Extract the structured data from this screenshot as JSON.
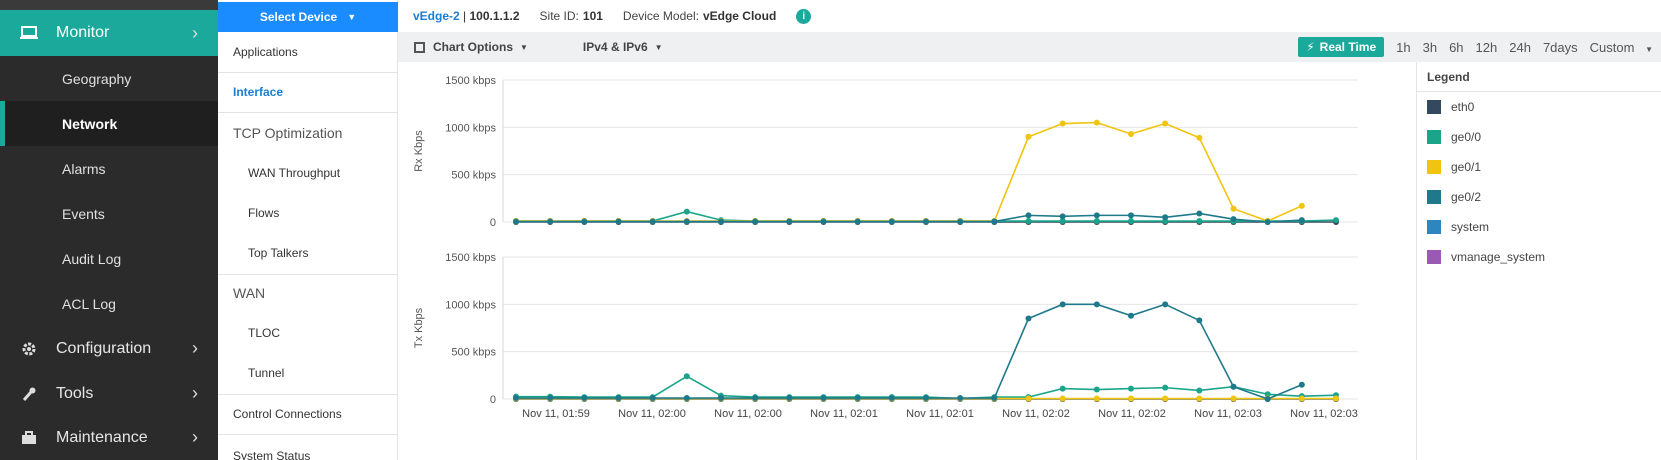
{
  "nav": {
    "monitor": "Monitor",
    "sub": [
      "Geography",
      "Network",
      "Alarms",
      "Events",
      "Audit Log",
      "ACL Log"
    ],
    "groups": [
      "Configuration",
      "Tools",
      "Maintenance"
    ]
  },
  "col2": {
    "select_device": "Select Device",
    "items": [
      "Applications",
      "Interface",
      "TCP Optimization",
      "WAN Throughput",
      "Flows",
      "Top Talkers",
      "WAN",
      "TLOC",
      "Tunnel",
      "Control Connections",
      "System Status"
    ]
  },
  "info": {
    "device_name": "vEdge-2",
    "device_ip": "100.1.1.2",
    "site_label": "Site ID:",
    "site_id": "101",
    "model_label": "Device Model:",
    "model": "vEdge Cloud"
  },
  "toolbar": {
    "chart_options": "Chart Options",
    "ip": "IPv4 & IPv6",
    "real_time": "Real Time",
    "ranges": [
      "1h",
      "3h",
      "6h",
      "12h",
      "24h",
      "7days"
    ],
    "custom": "Custom"
  },
  "legend": {
    "title": "Legend",
    "items": [
      {
        "name": "eth0",
        "color": "#34495e"
      },
      {
        "name": "ge0/0",
        "color": "#1aa58a"
      },
      {
        "name": "ge0/1",
        "color": "#f1c40f"
      },
      {
        "name": "ge0/2",
        "color": "#1e7a8a"
      },
      {
        "name": "system",
        "color": "#2e86c1"
      },
      {
        "name": "vmanage_system",
        "color": "#9b59b6"
      }
    ]
  },
  "chart_data": [
    {
      "type": "line",
      "ylabel": "Rx Kbps",
      "yticks": [
        "1500 kbps",
        "1000 kbps",
        "500 kbps",
        "0"
      ],
      "ylim": [
        0,
        1500
      ],
      "series": [
        {
          "name": "eth0",
          "color": "#34495e",
          "values": [
            0,
            0,
            0,
            0,
            0,
            0,
            0,
            0,
            0,
            0,
            0,
            0,
            0,
            0,
            0,
            0,
            0,
            0,
            0,
            0,
            0,
            0,
            0,
            0,
            0
          ]
        },
        {
          "name": "ge0/0",
          "color": "#1aa58a",
          "values": [
            10,
            10,
            10,
            10,
            10,
            110,
            20,
            10,
            10,
            10,
            10,
            10,
            10,
            10,
            10,
            10,
            10,
            10,
            10,
            10,
            10,
            10,
            10,
            10,
            20
          ]
        },
        {
          "name": "ge0/1",
          "color": "#f1c40f",
          "values": [
            10,
            10,
            10,
            10,
            10,
            10,
            10,
            10,
            10,
            10,
            10,
            10,
            10,
            10,
            10,
            900,
            1040,
            1050,
            930,
            1040,
            890,
            140,
            10,
            170
          ]
        },
        {
          "name": "ge0/2",
          "color": "#1e7a8a",
          "values": [
            5,
            5,
            5,
            5,
            5,
            5,
            5,
            5,
            5,
            5,
            5,
            5,
            5,
            5,
            5,
            70,
            60,
            70,
            70,
            50,
            90,
            30,
            0,
            20
          ]
        }
      ]
    },
    {
      "type": "line",
      "ylabel": "Tx Kbps",
      "yticks": [
        "1500 kbps",
        "1000 kbps",
        "500 kbps",
        "0"
      ],
      "ylim": [
        0,
        1500
      ],
      "xticks": [
        "Nov 11, 01:59",
        "Nov 11, 02:00",
        "Nov 11, 02:00",
        "Nov 11, 02:01",
        "Nov 11, 02:01",
        "Nov 11, 02:02",
        "Nov 11, 02:02",
        "Nov 11, 02:03",
        "Nov 11, 02:03"
      ],
      "series": [
        {
          "name": "eth0",
          "color": "#34495e",
          "values": [
            0,
            0,
            0,
            0,
            0,
            0,
            0,
            0,
            0,
            0,
            0,
            0,
            0,
            0,
            0,
            0,
            0,
            0,
            0,
            0,
            0,
            0,
            0,
            0,
            0
          ]
        },
        {
          "name": "ge0/0",
          "color": "#1aa58a",
          "values": [
            25,
            25,
            20,
            20,
            20,
            240,
            35,
            20,
            20,
            20,
            20,
            20,
            20,
            5,
            20,
            20,
            110,
            100,
            110,
            120,
            90,
            130,
            50,
            30,
            40
          ]
        },
        {
          "name": "ge0/1",
          "color": "#f1c40f",
          "values": [
            5,
            5,
            5,
            5,
            5,
            5,
            5,
            5,
            5,
            5,
            5,
            5,
            5,
            5,
            5,
            5,
            5,
            5,
            5,
            5,
            5,
            5,
            5,
            5,
            5
          ]
        },
        {
          "name": "ge0/2",
          "color": "#1e7a8a",
          "values": [
            10,
            10,
            10,
            10,
            10,
            10,
            10,
            10,
            10,
            10,
            10,
            10,
            10,
            10,
            10,
            850,
            1000,
            1000,
            880,
            1000,
            830,
            130,
            0,
            150
          ]
        }
      ]
    }
  ]
}
